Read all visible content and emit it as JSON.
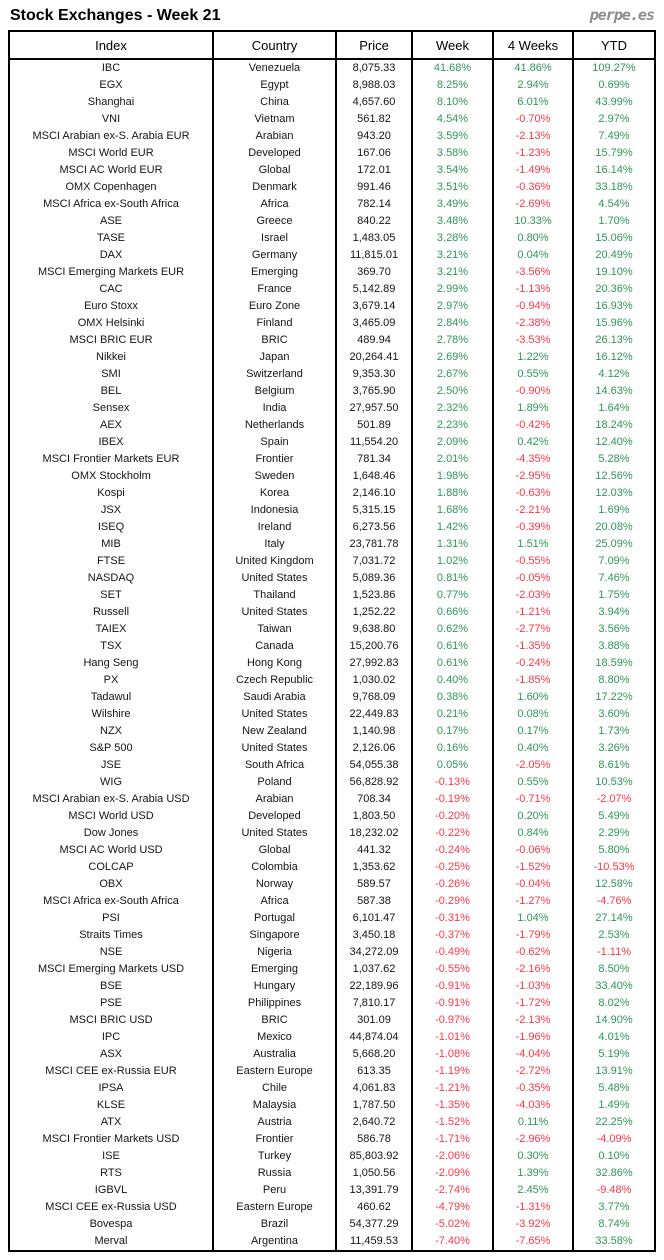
{
  "page": {
    "title": "Stock Exchanges - Week 21",
    "brand": "perpe.es"
  },
  "colors": {
    "positive": "#2F9658",
    "negative": "#FC3847",
    "text": "#141414",
    "brand_gray": "#8C8C8C"
  },
  "table": {
    "columns": [
      "Index",
      "Country",
      "Price",
      "Week",
      "4 Weeks",
      "YTD"
    ],
    "rows": [
      {
        "index": "IBC",
        "country": "Venezuela",
        "price": "8,075.33",
        "week": "41.68%",
        "w4": "41.86%",
        "ytd": "109.27%"
      },
      {
        "index": "EGX",
        "country": "Egypt",
        "price": "8,988.03",
        "week": "8.25%",
        "w4": "2.94%",
        "ytd": "0.69%"
      },
      {
        "index": "Shanghai",
        "country": "China",
        "price": "4,657.60",
        "week": "8.10%",
        "w4": "6.01%",
        "ytd": "43.99%"
      },
      {
        "index": "VNI",
        "country": "Vietnam",
        "price": "561.82",
        "week": "4.54%",
        "w4": "-0.70%",
        "ytd": "2.97%"
      },
      {
        "index": "MSCI Arabian ex-S. Arabia EUR",
        "country": "Arabian",
        "price": "943.20",
        "week": "3.59%",
        "w4": "-2.13%",
        "ytd": "7.49%"
      },
      {
        "index": "MSCI World EUR",
        "country": "Developed",
        "price": "167.06",
        "week": "3.58%",
        "w4": "-1.23%",
        "ytd": "15.79%"
      },
      {
        "index": "MSCI AC World EUR",
        "country": "Global",
        "price": "172.01",
        "week": "3.54%",
        "w4": "-1.49%",
        "ytd": "16.14%"
      },
      {
        "index": "OMX Copenhagen",
        "country": "Denmark",
        "price": "991.46",
        "week": "3.51%",
        "w4": "-0.36%",
        "ytd": "33.18%"
      },
      {
        "index": "MSCI Africa ex-South Africa",
        "country": "Africa",
        "price": "782.14",
        "week": "3.49%",
        "w4": "-2.69%",
        "ytd": "4.54%"
      },
      {
        "index": "ASE",
        "country": "Greece",
        "price": "840.22",
        "week": "3.48%",
        "w4": "10.33%",
        "ytd": "1.70%"
      },
      {
        "index": "TASE",
        "country": "Israel",
        "price": "1,483.05",
        "week": "3.28%",
        "w4": "0.80%",
        "ytd": "15.06%"
      },
      {
        "index": "DAX",
        "country": "Germany",
        "price": "11,815.01",
        "week": "3.21%",
        "w4": "0.04%",
        "ytd": "20.49%"
      },
      {
        "index": "MSCI Emerging Markets EUR",
        "country": "Emerging",
        "price": "369.70",
        "week": "3.21%",
        "w4": "-3.56%",
        "ytd": "19.10%"
      },
      {
        "index": "CAC",
        "country": "France",
        "price": "5,142.89",
        "week": "2.99%",
        "w4": "-1.13%",
        "ytd": "20.36%"
      },
      {
        "index": "Euro Stoxx",
        "country": "Euro Zone",
        "price": "3,679.14",
        "week": "2.97%",
        "w4": "-0.94%",
        "ytd": "16.93%"
      },
      {
        "index": "OMX Helsinki",
        "country": "Finland",
        "price": "3,465.09",
        "week": "2.84%",
        "w4": "-2.38%",
        "ytd": "15.96%"
      },
      {
        "index": "MSCI BRIC EUR",
        "country": "BRIC",
        "price": "489.94",
        "week": "2.78%",
        "w4": "-3.53%",
        "ytd": "26.13%"
      },
      {
        "index": "Nikkei",
        "country": "Japan",
        "price": "20,264.41",
        "week": "2.69%",
        "w4": "1.22%",
        "ytd": "16.12%"
      },
      {
        "index": "SMI",
        "country": "Switzerland",
        "price": "9,353.30",
        "week": "2.67%",
        "w4": "0.55%",
        "ytd": "4.12%"
      },
      {
        "index": "BEL",
        "country": "Belgium",
        "price": "3,765.90",
        "week": "2.50%",
        "w4": "-0.90%",
        "ytd": "14.63%"
      },
      {
        "index": "Sensex",
        "country": "India",
        "price": "27,957.50",
        "week": "2.32%",
        "w4": "1.89%",
        "ytd": "1.64%"
      },
      {
        "index": "AEX",
        "country": "Netherlands",
        "price": "501.89",
        "week": "2.23%",
        "w4": "-0.42%",
        "ytd": "18.24%"
      },
      {
        "index": "IBEX",
        "country": "Spain",
        "price": "11,554.20",
        "week": "2.09%",
        "w4": "0.42%",
        "ytd": "12.40%"
      },
      {
        "index": "MSCI Frontier Markets EUR",
        "country": "Frontier",
        "price": "781.34",
        "week": "2.01%",
        "w4": "-4.35%",
        "ytd": "5.28%"
      },
      {
        "index": "OMX Stockholm",
        "country": "Sweden",
        "price": "1,648.46",
        "week": "1.98%",
        "w4": "-2.95%",
        "ytd": "12.56%"
      },
      {
        "index": "Kospi",
        "country": "Korea",
        "price": "2,146.10",
        "week": "1.88%",
        "w4": "-0.63%",
        "ytd": "12.03%"
      },
      {
        "index": "JSX",
        "country": "Indonesia",
        "price": "5,315.15",
        "week": "1.68%",
        "w4": "-2.21%",
        "ytd": "1.69%"
      },
      {
        "index": "ISEQ",
        "country": "Ireland",
        "price": "6,273.56",
        "week": "1.42%",
        "w4": "-0.39%",
        "ytd": "20.08%"
      },
      {
        "index": "MIB",
        "country": "Italy",
        "price": "23,781.78",
        "week": "1.31%",
        "w4": "1.51%",
        "ytd": "25.09%"
      },
      {
        "index": "FTSE",
        "country": "United Kingdom",
        "price": "7,031.72",
        "week": "1.02%",
        "w4": "-0.55%",
        "ytd": "7.09%"
      },
      {
        "index": "NASDAQ",
        "country": "United States",
        "price": "5,089.36",
        "week": "0.81%",
        "w4": "-0.05%",
        "ytd": "7.46%"
      },
      {
        "index": "SET",
        "country": "Thailand",
        "price": "1,523.86",
        "week": "0.77%",
        "w4": "-2.03%",
        "ytd": "1.75%"
      },
      {
        "index": "Russell",
        "country": "United States",
        "price": "1,252.22",
        "week": "0.66%",
        "w4": "-1.21%",
        "ytd": "3.94%"
      },
      {
        "index": "TAIEX",
        "country": "Taiwan",
        "price": "9,638.80",
        "week": "0.62%",
        "w4": "-2.77%",
        "ytd": "3.56%"
      },
      {
        "index": "TSX",
        "country": "Canada",
        "price": "15,200.76",
        "week": "0.61%",
        "w4": "-1.35%",
        "ytd": "3.88%"
      },
      {
        "index": "Hang Seng",
        "country": "Hong Kong",
        "price": "27,992.83",
        "week": "0.61%",
        "w4": "-0.24%",
        "ytd": "18.59%"
      },
      {
        "index": "PX",
        "country": "Czech Republic",
        "price": "1,030.02",
        "week": "0.40%",
        "w4": "-1.85%",
        "ytd": "8.80%"
      },
      {
        "index": "Tadawul",
        "country": "Saudi Arabia",
        "price": "9,768.09",
        "week": "0.38%",
        "w4": "1.60%",
        "ytd": "17.22%"
      },
      {
        "index": "Wilshire",
        "country": "United States",
        "price": "22,449.83",
        "week": "0.21%",
        "w4": "0.08%",
        "ytd": "3.60%"
      },
      {
        "index": "NZX",
        "country": "New Zealand",
        "price": "1,140.98",
        "week": "0.17%",
        "w4": "0.17%",
        "ytd": "1.73%"
      },
      {
        "index": "S&P 500",
        "country": "United States",
        "price": "2,126.06",
        "week": "0.16%",
        "w4": "0.40%",
        "ytd": "3.26%"
      },
      {
        "index": "JSE",
        "country": "South Africa",
        "price": "54,055.38",
        "week": "0.05%",
        "w4": "-2.05%",
        "ytd": "8.61%"
      },
      {
        "index": "WIG",
        "country": "Poland",
        "price": "56,828.92",
        "week": "-0.13%",
        "w4": "0.55%",
        "ytd": "10.53%"
      },
      {
        "index": "MSCI Arabian ex-S. Arabia USD",
        "country": "Arabian",
        "price": "708.34",
        "week": "-0.19%",
        "w4": "-0.71%",
        "ytd": "-2.07%"
      },
      {
        "index": "MSCI World USD",
        "country": "Developed",
        "price": "1,803.50",
        "week": "-0.20%",
        "w4": "0.20%",
        "ytd": "5.49%"
      },
      {
        "index": "Dow Jones",
        "country": "United States",
        "price": "18,232.02",
        "week": "-0.22%",
        "w4": "0.84%",
        "ytd": "2.29%"
      },
      {
        "index": "MSCI AC World USD",
        "country": "Global",
        "price": "441.32",
        "week": "-0.24%",
        "w4": "-0.06%",
        "ytd": "5.80%"
      },
      {
        "index": "COLCAP",
        "country": "Colombia",
        "price": "1,353.62",
        "week": "-0.25%",
        "w4": "-1.52%",
        "ytd": "-10.53%"
      },
      {
        "index": "OBX",
        "country": "Norway",
        "price": "589.57",
        "week": "-0.26%",
        "w4": "-0.04%",
        "ytd": "12.58%"
      },
      {
        "index": "MSCI Africa ex-South Africa",
        "country": "Africa",
        "price": "587.38",
        "week": "-0.29%",
        "w4": "-1.27%",
        "ytd": "-4.76%"
      },
      {
        "index": "PSI",
        "country": "Portugal",
        "price": "6,101.47",
        "week": "-0.31%",
        "w4": "1.04%",
        "ytd": "27.14%"
      },
      {
        "index": "Straits Times",
        "country": "Singapore",
        "price": "3,450.18",
        "week": "-0.37%",
        "w4": "-1.79%",
        "ytd": "2.53%"
      },
      {
        "index": "NSE",
        "country": "Nigeria",
        "price": "34,272.09",
        "week": "-0.49%",
        "w4": "-0.62%",
        "ytd": "-1.11%"
      },
      {
        "index": "MSCI Emerging Markets USD",
        "country": "Emerging",
        "price": "1,037.62",
        "week": "-0.55%",
        "w4": "-2.16%",
        "ytd": "8.50%"
      },
      {
        "index": "BSE",
        "country": "Hungary",
        "price": "22,189.96",
        "week": "-0.91%",
        "w4": "-1.03%",
        "ytd": "33.40%"
      },
      {
        "index": "PSE",
        "country": "Philippines",
        "price": "7,810.17",
        "week": "-0.91%",
        "w4": "-1.72%",
        "ytd": "8.02%"
      },
      {
        "index": "MSCI BRIC USD",
        "country": "BRIC",
        "price": "301.09",
        "week": "-0.97%",
        "w4": "-2.13%",
        "ytd": "14.90%"
      },
      {
        "index": "IPC",
        "country": "Mexico",
        "price": "44,874.04",
        "week": "-1.01%",
        "w4": "-1.96%",
        "ytd": "4.01%"
      },
      {
        "index": "ASX",
        "country": "Australia",
        "price": "5,668.20",
        "week": "-1.08%",
        "w4": "-4.04%",
        "ytd": "5.19%"
      },
      {
        "index": "MSCI CEE ex-Russia EUR",
        "country": "Eastern Europe",
        "price": "613.35",
        "week": "-1.19%",
        "w4": "-2.72%",
        "ytd": "13.91%"
      },
      {
        "index": "IPSA",
        "country": "Chile",
        "price": "4,061.83",
        "week": "-1.21%",
        "w4": "-0.35%",
        "ytd": "5.48%"
      },
      {
        "index": "KLSE",
        "country": "Malaysia",
        "price": "1,787.50",
        "week": "-1.35%",
        "w4": "-4.03%",
        "ytd": "1.49%"
      },
      {
        "index": "ATX",
        "country": "Austria",
        "price": "2,640.72",
        "week": "-1.52%",
        "w4": "0.11%",
        "ytd": "22.25%"
      },
      {
        "index": "MSCI Frontier Markets USD",
        "country": "Frontier",
        "price": "586.78",
        "week": "-1.71%",
        "w4": "-2.96%",
        "ytd": "-4.09%"
      },
      {
        "index": "ISE",
        "country": "Turkey",
        "price": "85,803.92",
        "week": "-2.06%",
        "w4": "0.30%",
        "ytd": "0.10%"
      },
      {
        "index": "RTS",
        "country": "Russia",
        "price": "1,050.56",
        "week": "-2.09%",
        "w4": "1.39%",
        "ytd": "32.86%"
      },
      {
        "index": "IGBVL",
        "country": "Peru",
        "price": "13,391.79",
        "week": "-2.74%",
        "w4": "2.45%",
        "ytd": "-9.48%"
      },
      {
        "index": "MSCI CEE ex-Russia USD",
        "country": "Eastern Europe",
        "price": "460.62",
        "week": "-4.79%",
        "w4": "-1.31%",
        "ytd": "3.77%"
      },
      {
        "index": "Bovespa",
        "country": "Brazil",
        "price": "54,377.29",
        "week": "-5.02%",
        "w4": "-3.92%",
        "ytd": "8.74%"
      },
      {
        "index": "Merval",
        "country": "Argentina",
        "price": "11,459.53",
        "week": "-7.40%",
        "w4": "-7.65%",
        "ytd": "33.58%"
      }
    ]
  }
}
